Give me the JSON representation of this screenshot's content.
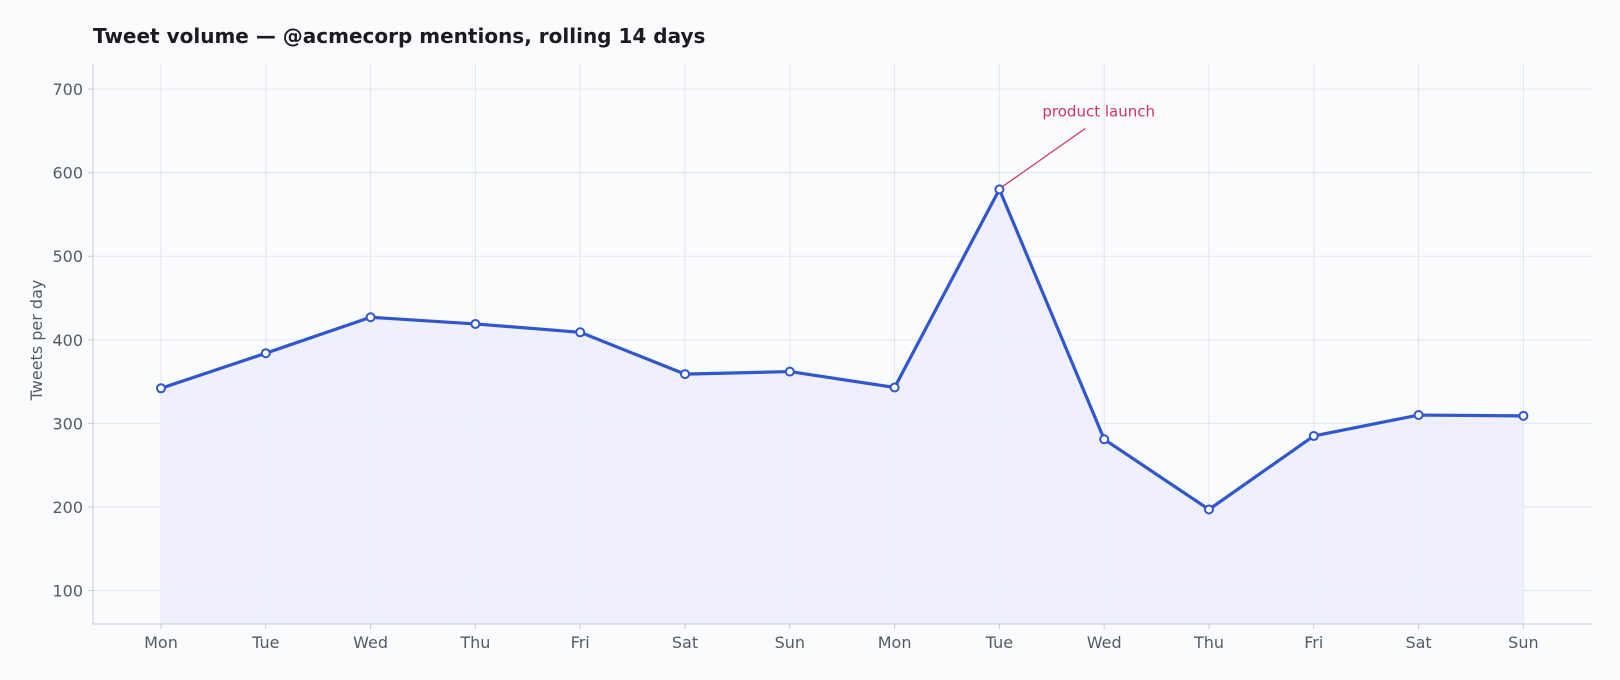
{
  "chart_data": {
    "type": "area",
    "title": "Tweet volume — @acmecorp mentions, rolling 14 days",
    "xlabel": "",
    "ylabel": "Tweets per day",
    "categories": [
      "Mon",
      "Tue",
      "Wed",
      "Thu",
      "Fri",
      "Sat",
      "Sun",
      "Mon",
      "Tue",
      "Wed",
      "Thu",
      "Fri",
      "Sat",
      "Sun"
    ],
    "series": [
      {
        "values": [
          342,
          384,
          427,
          419,
          409,
          359,
          362,
          343,
          580,
          281,
          197,
          285,
          310,
          309
        ]
      }
    ],
    "ylim": [
      60,
      730
    ],
    "yticks": [
      100,
      200,
      300,
      400,
      500,
      600,
      700
    ],
    "grid": true,
    "legend": "none",
    "annotations": [
      {
        "text": "product launch",
        "index": 8
      }
    ],
    "colors": {
      "line": "#3057cc",
      "fill": "#ecedfa",
      "marker_fill": "#ffffff",
      "grid": "#e3e5ee",
      "axis": "#c9ccd6",
      "annotation": "#d03562"
    }
  }
}
